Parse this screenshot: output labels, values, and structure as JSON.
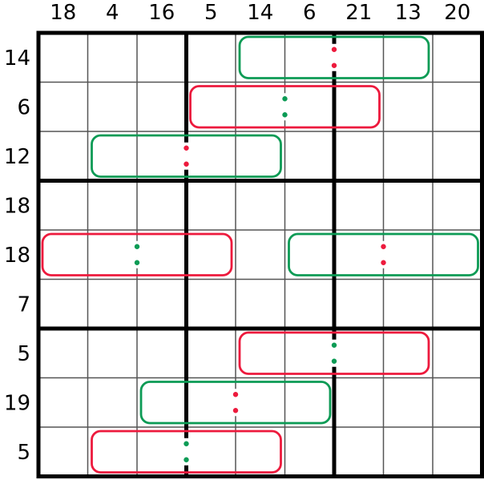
{
  "puzzle": {
    "type": "sudoku-variant-grid",
    "grid": {
      "rows": 9,
      "cols": 9,
      "box_size": 3,
      "top_labels": [
        "18",
        "4",
        "16",
        "5",
        "14",
        "6",
        "21",
        "13",
        "20"
      ],
      "left_labels": [
        "14",
        "6",
        "12",
        "18",
        "18",
        "7",
        "5",
        "19",
        "5"
      ]
    },
    "cages": [
      {
        "row": 1,
        "col_start": 5,
        "col_end": 8,
        "cage_color": "green",
        "dot_color": "red",
        "dot_boundary_after_col": 6
      },
      {
        "row": 2,
        "col_start": 4,
        "col_end": 7,
        "cage_color": "red",
        "dot_color": "green",
        "dot_boundary_after_col": 5
      },
      {
        "row": 3,
        "col_start": 2,
        "col_end": 5,
        "cage_color": "green",
        "dot_color": "red",
        "dot_boundary_after_col": 3
      },
      {
        "row": 5,
        "col_start": 1,
        "col_end": 4,
        "cage_color": "red",
        "dot_color": "green",
        "dot_boundary_after_col": 2
      },
      {
        "row": 5,
        "col_start": 6,
        "col_end": 9,
        "cage_color": "green",
        "dot_color": "red",
        "dot_boundary_after_col": 7
      },
      {
        "row": 7,
        "col_start": 5,
        "col_end": 8,
        "cage_color": "red",
        "dot_color": "green",
        "dot_boundary_after_col": 6
      },
      {
        "row": 8,
        "col_start": 3,
        "col_end": 6,
        "cage_color": "green",
        "dot_color": "red",
        "dot_boundary_after_col": 4
      },
      {
        "row": 9,
        "col_start": 2,
        "col_end": 5,
        "cage_color": "red",
        "dot_color": "green",
        "dot_boundary_after_col": 3
      }
    ],
    "dots_per_pair": 2
  },
  "colors": {
    "green": "#0c9b55",
    "red": "#ed1a3d",
    "grid_line": "#555555",
    "box_line": "#000000",
    "label_text": "#000000",
    "background": "#ffffff"
  }
}
